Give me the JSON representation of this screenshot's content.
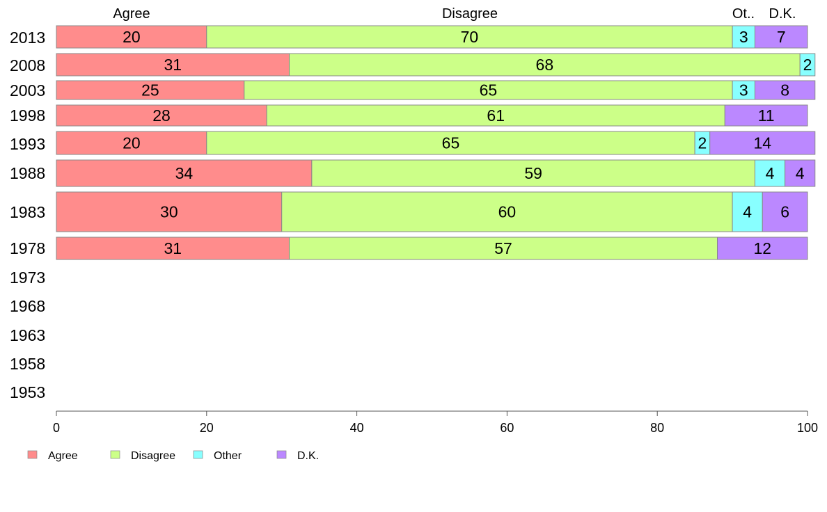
{
  "chart_data": {
    "type": "bar",
    "orientation": "horizontal",
    "stacked": true,
    "categories": [
      "2013",
      "2008",
      "2003",
      "1998",
      "1993",
      "1988",
      "1983",
      "1978",
      "1973",
      "1968",
      "1963",
      "1958",
      "1953"
    ],
    "series": [
      {
        "name": "Agree",
        "color": "#FF8C8C",
        "values": [
          20,
          31,
          25,
          28,
          20,
          34,
          30,
          31,
          null,
          null,
          null,
          null,
          null
        ]
      },
      {
        "name": "Disagree",
        "color": "#CCFF88",
        "values": [
          70,
          68,
          65,
          61,
          65,
          59,
          60,
          57,
          null,
          null,
          null,
          null,
          null
        ]
      },
      {
        "name": "Other",
        "color": "#88FFFF",
        "values": [
          3,
          2,
          3,
          0,
          2,
          4,
          4,
          0,
          null,
          null,
          null,
          null,
          null
        ]
      },
      {
        "name": "D.K.",
        "color": "#BB88FF",
        "values": [
          7,
          0,
          8,
          11,
          14,
          4,
          6,
          12,
          null,
          null,
          null,
          null,
          null
        ]
      }
    ],
    "top_labels": [
      "Agree",
      "Disagree",
      "Ot..",
      "D.K."
    ],
    "xlim": [
      0,
      100
    ],
    "xticks": [
      0,
      20,
      40,
      60,
      80,
      100
    ],
    "legend_position": "bottom-left",
    "grid": false
  }
}
